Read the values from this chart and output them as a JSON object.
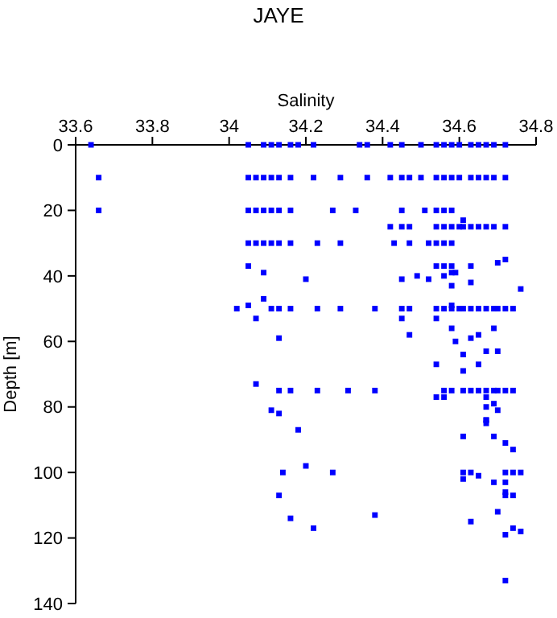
{
  "chart_data": {
    "type": "scatter",
    "title": "JAYE",
    "xlabel": "Salinity",
    "ylabel": "Depth [m]",
    "xlim": [
      33.6,
      34.8
    ],
    "xticks": [
      33.6,
      33.8,
      34,
      34.2,
      34.4,
      34.6,
      34.8
    ],
    "ylim": [
      140,
      0
    ],
    "yticks": [
      0,
      20,
      40,
      60,
      80,
      100,
      120,
      140
    ],
    "marker": "square",
    "series": [
      {
        "color": "#0000ff",
        "x": [
          33.64,
          34.05,
          34.09,
          34.11,
          34.13,
          34.16,
          34.18,
          34.22,
          34.34,
          34.36,
          34.42,
          34.45,
          34.5,
          34.54,
          34.56,
          34.58,
          34.6,
          34.63,
          34.65,
          34.67,
          34.69,
          34.72,
          33.66,
          34.05,
          34.07,
          34.09,
          34.11,
          34.13,
          34.16,
          34.22,
          34.29,
          34.36,
          34.42,
          34.45,
          34.47,
          34.5,
          34.54,
          34.56,
          34.58,
          34.6,
          34.63,
          34.65,
          34.67,
          34.69,
          34.72,
          33.66,
          34.05,
          34.07,
          34.09,
          34.11,
          34.13,
          34.16,
          34.27,
          34.33,
          34.45,
          34.51,
          34.54,
          34.56,
          34.58,
          34.42,
          34.45,
          34.47,
          34.54,
          34.56,
          34.58,
          34.6,
          34.61,
          34.63,
          34.65,
          34.67,
          34.69,
          34.72,
          34.61,
          34.05,
          34.07,
          34.09,
          34.11,
          34.13,
          34.16,
          34.23,
          34.29,
          34.43,
          34.47,
          34.52,
          34.54,
          34.56,
          34.58,
          34.05,
          34.09,
          34.2,
          34.45,
          34.49,
          34.52,
          34.54,
          34.56,
          34.58,
          34.56,
          34.58,
          34.59,
          34.58,
          34.63,
          34.63,
          34.7,
          34.72,
          34.76,
          34.02,
          34.05,
          34.11,
          34.13,
          34.16,
          34.23,
          34.29,
          34.38,
          34.45,
          34.47,
          34.54,
          34.56,
          34.58,
          34.6,
          34.61,
          34.63,
          34.65,
          34.67,
          34.69,
          34.7,
          34.72,
          34.74,
          34.09,
          34.07,
          34.45,
          34.54,
          34.58,
          34.13,
          34.47,
          34.58,
          34.69,
          34.65,
          34.63,
          34.59,
          34.61,
          34.67,
          34.7,
          34.54,
          34.61,
          34.65,
          34.07,
          34.13,
          34.16,
          34.23,
          34.31,
          34.38,
          34.54,
          34.56,
          34.58,
          34.61,
          34.63,
          34.65,
          34.67,
          34.69,
          34.7,
          34.72,
          34.74,
          34.56,
          34.67,
          34.11,
          34.13,
          34.18,
          34.67,
          34.69,
          34.7,
          34.67,
          34.67,
          34.67,
          34.61,
          34.69,
          34.72,
          34.74,
          34.14,
          34.2,
          34.27,
          34.61,
          34.63,
          34.72,
          34.74,
          34.76,
          34.61,
          34.65,
          34.69,
          34.72,
          34.13,
          34.72,
          34.74,
          34.72,
          34.38,
          34.16,
          34.7,
          34.63,
          34.22,
          34.74,
          34.72,
          34.76,
          34.72
        ],
        "values": [
          0,
          0,
          0,
          0,
          0,
          0,
          0,
          0,
          0,
          0,
          0,
          0,
          0,
          0,
          0,
          0,
          0,
          0,
          0,
          0,
          0,
          0,
          10,
          10,
          10,
          10,
          10,
          10,
          10,
          10,
          10,
          10,
          10,
          10,
          10,
          10,
          10,
          10,
          10,
          10,
          10,
          10,
          10,
          10,
          10,
          20,
          20,
          20,
          20,
          20,
          20,
          20,
          20,
          20,
          20,
          20,
          20,
          20,
          20,
          25,
          25,
          25,
          25,
          25,
          25,
          25,
          25,
          25,
          25,
          25,
          25,
          25,
          23,
          30,
          30,
          30,
          30,
          30,
          30,
          30,
          30,
          30,
          30,
          30,
          30,
          30,
          30,
          37,
          39,
          41,
          41,
          40,
          41,
          37,
          37,
          37,
          40,
          39,
          39,
          43,
          37,
          42,
          36,
          35,
          44,
          50,
          49,
          50,
          50,
          50,
          50,
          50,
          50,
          50,
          50,
          50,
          50,
          50,
          50,
          50,
          50,
          50,
          50,
          50,
          50,
          50,
          50,
          47,
          53,
          53,
          53,
          49,
          59,
          58,
          56,
          56,
          58,
          59,
          60,
          64,
          63,
          63,
          67,
          69,
          67,
          73,
          75,
          75,
          75,
          75,
          75,
          77,
          75,
          75,
          75,
          75,
          75,
          75,
          75,
          75,
          75,
          75,
          77,
          77,
          81,
          82,
          87,
          80,
          79,
          81,
          84,
          85,
          84,
          89,
          89,
          91,
          93,
          100,
          98,
          100,
          100,
          100,
          100,
          100,
          100,
          102,
          101,
          103,
          103,
          107,
          107,
          107,
          106,
          113,
          114,
          112,
          115,
          117,
          117,
          119,
          118,
          133
        ]
      }
    ]
  }
}
